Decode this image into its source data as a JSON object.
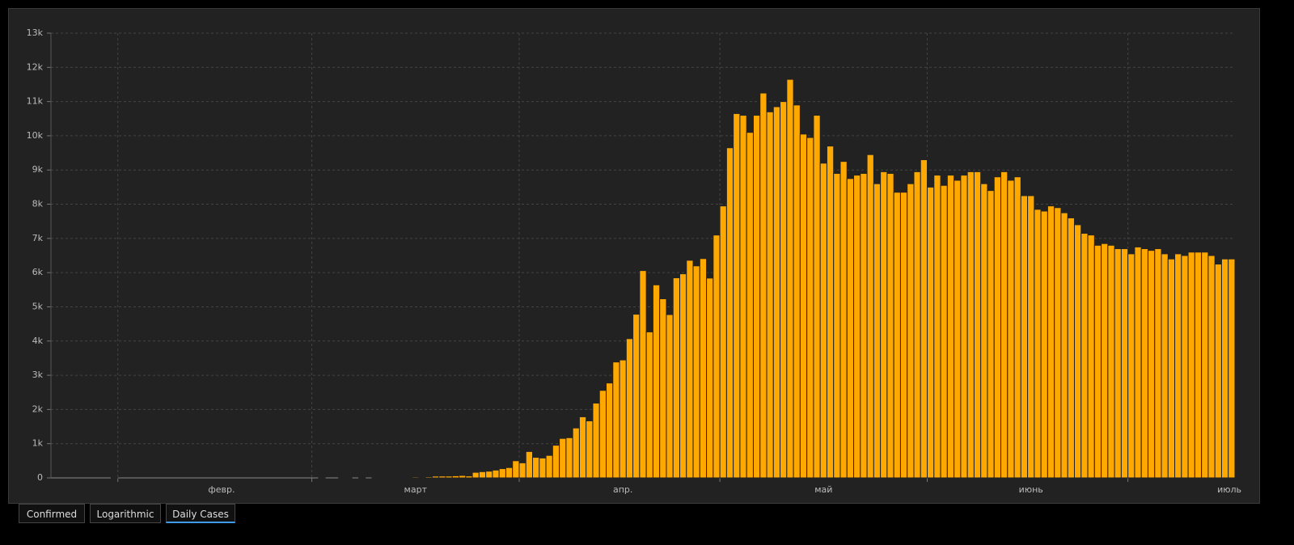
{
  "chart_data": {
    "type": "bar",
    "color": "#ffa800",
    "grid": true,
    "ylim": [
      0,
      13000
    ],
    "yticks": [
      0,
      {
        "value": 1000,
        "label": "1k"
      },
      {
        "value": 2000,
        "label": "2k"
      },
      {
        "value": 3000,
        "label": "3k"
      },
      {
        "value": 4000,
        "label": "4k"
      },
      {
        "value": 5000,
        "label": "5k"
      },
      {
        "value": 6000,
        "label": "6k"
      },
      {
        "value": 7000,
        "label": "7k"
      },
      {
        "value": 8000,
        "label": "8k"
      },
      {
        "value": 9000,
        "label": "9k"
      },
      {
        "value": 10000,
        "label": "10k"
      },
      {
        "value": 11000,
        "label": "11k"
      },
      {
        "value": 12000,
        "label": "12k"
      },
      {
        "value": 13000,
        "label": "13k"
      }
    ],
    "categories": [
      null,
      null,
      null,
      null,
      null,
      null,
      null,
      null,
      null,
      null,
      null,
      null,
      null,
      null,
      null,
      null,
      null,
      null,
      null,
      null,
      null,
      null,
      null,
      null,
      null,
      "февр.",
      null,
      null,
      null,
      null,
      null,
      null,
      null,
      null,
      null,
      null,
      null,
      null,
      null,
      null,
      null,
      null,
      null,
      null,
      null,
      null,
      null,
      null,
      null,
      null,
      null,
      null,
      null,
      null,
      "март",
      null,
      null,
      null,
      null,
      null,
      null,
      null,
      null,
      null,
      null,
      null,
      null,
      null,
      null,
      null,
      null,
      null,
      null,
      null,
      null,
      null,
      null,
      null,
      null,
      null,
      null,
      null,
      null,
      null,
      null,
      "апр.",
      null,
      null,
      null,
      null,
      null,
      null,
      null,
      null,
      null,
      null,
      null,
      null,
      null,
      null,
      null,
      null,
      null,
      null,
      null,
      null,
      null,
      null,
      null,
      null,
      null,
      null,
      null,
      null,
      null,
      "май",
      null,
      null,
      null,
      null,
      null,
      null,
      null,
      null,
      null,
      null,
      null,
      null,
      null,
      null,
      null,
      null,
      null,
      null,
      null,
      null,
      null,
      null,
      null,
      null,
      null,
      null,
      null,
      null,
      null,
      null,
      "июнь",
      null,
      null,
      null,
      null,
      null,
      null,
      null,
      null,
      null,
      null,
      null,
      null,
      null,
      null,
      null,
      null,
      null,
      null,
      null,
      null,
      null,
      null,
      null,
      null,
      null,
      null,
      null,
      null,
      null,
      "июль"
    ],
    "values": [
      0,
      0,
      0,
      0,
      0,
      0,
      0,
      0,
      0,
      2,
      0,
      0,
      0,
      0,
      0,
      0,
      0,
      0,
      0,
      0,
      0,
      0,
      0,
      0,
      0,
      0,
      0,
      0,
      0,
      0,
      0,
      0,
      0,
      0,
      0,
      0,
      0,
      0,
      0,
      0,
      1,
      0,
      0,
      1,
      6,
      0,
      3,
      0,
      3,
      8,
      6,
      11,
      14,
      4,
      29,
      21,
      33,
      52,
      54,
      53,
      61,
      71,
      57,
      163,
      182,
      196,
      228,
      270,
      302,
      501,
      440,
      771,
      601,
      582,
      658,
      954,
      1154,
      1175,
      1459,
      1786,
      1667,
      2186,
      2558,
      2774,
      3388,
      3448,
      4070,
      4785,
      6060,
      4268,
      5642,
      5236,
      4774,
      5849,
      5966,
      6361,
      6198,
      6411,
      5841,
      7099,
      7950,
      9650,
      10650,
      10600,
      10100,
      10600,
      11250,
      10700,
      10850,
      11000,
      11650,
      10900,
      10050,
      9950,
      10600,
      9200,
      9700,
      8900,
      9250,
      8750,
      8850,
      8900,
      9450,
      8600,
      8950,
      8900,
      8350,
      8350,
      8600,
      8950,
      9300,
      8500,
      8850,
      8550,
      8850,
      8700,
      8850,
      8950,
      8950,
      8600,
      8400,
      8800,
      8950,
      8700,
      8800,
      8250,
      8250,
      7850,
      7800,
      7950,
      7900,
      7750,
      7600,
      7400,
      7150,
      7100,
      6800,
      6850,
      6800,
      6700,
      6700,
      6550,
      6750,
      6700,
      6650,
      6700,
      6550,
      6400,
      6550,
      6500,
      6600,
      6600,
      6600,
      6500,
      6250,
      6400,
      6400
    ]
  },
  "buttons": [
    "Confirmed",
    "Logarithmic",
    "Daily Cases"
  ]
}
